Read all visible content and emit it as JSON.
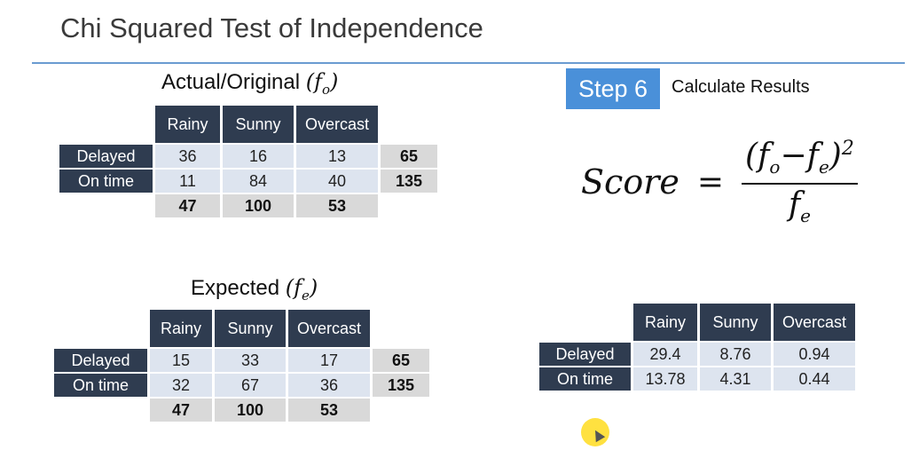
{
  "title": "Chi Squared Test of Independence",
  "step": {
    "badge": "Step 6",
    "description": "Calculate Results"
  },
  "formula": {
    "lhs": "Score",
    "equals": "=",
    "numerator_open": "(f",
    "numerator_sub1": "o",
    "numerator_minus": "−f",
    "numerator_sub2": "e",
    "numerator_close": ")",
    "numerator_power": "2",
    "denominator": "f",
    "denominator_sub": "e"
  },
  "actual": {
    "caption_text": "Actual/Original ",
    "caption_symbol": "(f",
    "caption_sub": "o",
    "caption_close": ")",
    "columns": [
      "Rainy",
      "Sunny",
      "Overcast"
    ],
    "rows": [
      {
        "label": "Delayed",
        "values": [
          "36",
          "16",
          "13"
        ],
        "total": "65"
      },
      {
        "label": "On time",
        "values": [
          "11",
          "84",
          "40"
        ],
        "total": "135"
      }
    ],
    "column_totals": [
      "47",
      "100",
      "53"
    ]
  },
  "expected": {
    "caption_text": "Expected ",
    "caption_symbol": "(f",
    "caption_sub": "e",
    "caption_close": ")",
    "columns": [
      "Rainy",
      "Sunny",
      "Overcast"
    ],
    "rows": [
      {
        "label": "Delayed",
        "values": [
          "15",
          "33",
          "17"
        ],
        "total": "65"
      },
      {
        "label": "On time",
        "values": [
          "32",
          "67",
          "36"
        ],
        "total": "135"
      }
    ],
    "column_totals": [
      "47",
      "100",
      "53"
    ]
  },
  "scores": {
    "columns": [
      "Rainy",
      "Sunny",
      "Overcast"
    ],
    "rows": [
      {
        "label": "Delayed",
        "values": [
          "29.4",
          "8.76",
          "0.94"
        ]
      },
      {
        "label": "On time",
        "values": [
          "13.78",
          "4.31",
          "0.44"
        ]
      }
    ]
  },
  "colors": {
    "header_bg": "#2f3c50",
    "cell_bg": "#dde4ef",
    "total_bg": "#d9d9d9",
    "accent": "#4a90d9",
    "rule": "#6a9bd1"
  }
}
